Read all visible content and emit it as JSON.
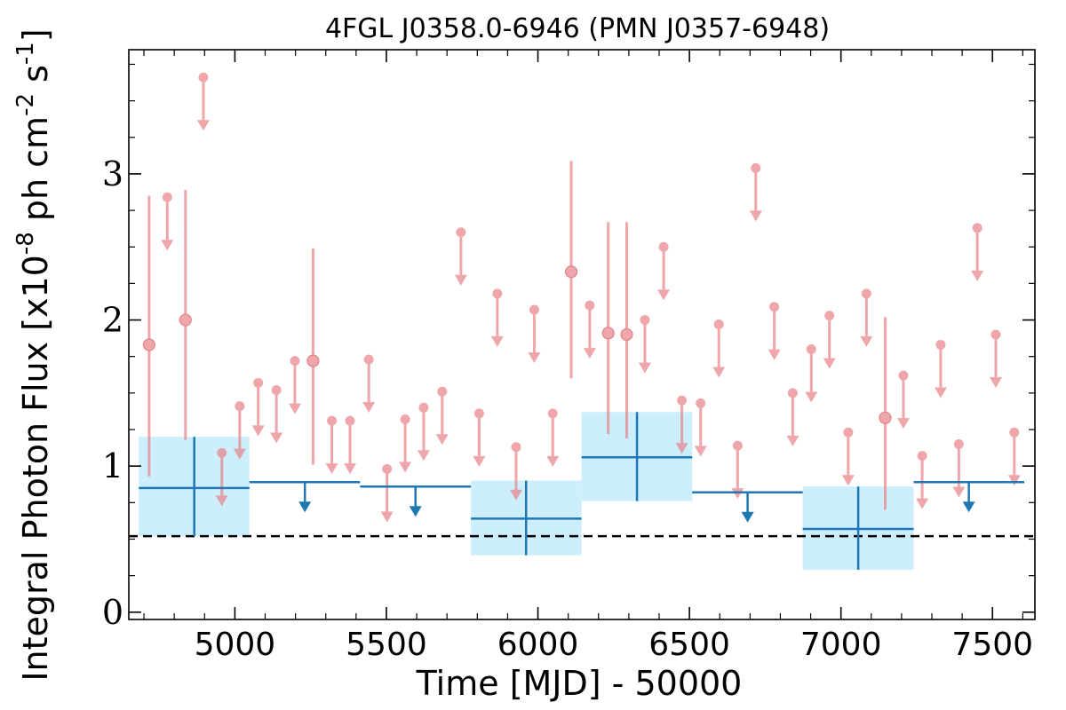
{
  "chart_data": {
    "type": "scatter",
    "title": "4FGL J0358.0-6946 (PMN J0357-6948)",
    "xlabel": "Time [MJD] - 50000",
    "ylabel": "Integral Photon Flux [x10",
    "ylabel_exp": "-8",
    "ylabel_mid": " ph cm",
    "ylabel_exp2": "-2",
    "ylabel_mid2": " s",
    "ylabel_exp3": "-1",
    "ylabel_end": "]",
    "xlim": [
      4650,
      7640
    ],
    "ylim": [
      -0.05,
      3.85
    ],
    "x_ticks": [
      5000,
      5500,
      6000,
      6500,
      7000,
      7500
    ],
    "x_tick_labels": [
      "5000",
      "5500",
      "6000",
      "6500",
      "7000",
      "7500"
    ],
    "y_ticks": [
      0,
      1,
      2,
      3
    ],
    "y_tick_labels": [
      "0",
      "1",
      "2",
      "3"
    ],
    "reference_line": 0.52,
    "colors": {
      "yearly": "#1f77b4",
      "yearly_fill": "#cdeefc",
      "monthly": "#e8858a",
      "reference": "#000000"
    },
    "series": [
      {
        "kind": "yearly-bins",
        "points": [
          {
            "x0": 4683,
            "x1": 5048,
            "xc": 4866,
            "y": 0.85,
            "lo": 0.52,
            "hi": 1.2,
            "type": "detection"
          },
          {
            "x0": 5048,
            "x1": 5413,
            "xc": 5231,
            "y": 0.89,
            "type": "ul"
          },
          {
            "x0": 5413,
            "x1": 5779,
            "xc": 5596,
            "y": 0.86,
            "type": "ul"
          },
          {
            "x0": 5779,
            "x1": 6144,
            "xc": 5961,
            "y": 0.64,
            "lo": 0.39,
            "hi": 0.9,
            "type": "detection"
          },
          {
            "x0": 6144,
            "x1": 6509,
            "xc": 6327,
            "y": 1.06,
            "lo": 0.76,
            "hi": 1.37,
            "type": "detection"
          },
          {
            "x0": 6509,
            "x1": 6874,
            "xc": 6692,
            "y": 0.82,
            "type": "ul"
          },
          {
            "x0": 6874,
            "x1": 7240,
            "xc": 7057,
            "y": 0.57,
            "lo": 0.29,
            "hi": 0.86,
            "type": "detection"
          },
          {
            "x0": 7240,
            "x1": 7605,
            "xc": 7422,
            "y": 0.89,
            "type": "ul"
          }
        ]
      },
      {
        "kind": "monthly-bins",
        "points": [
          {
            "x": 4717,
            "y": 1.83,
            "lo": 0.93,
            "hi": 2.85,
            "type": "detection"
          },
          {
            "x": 4777,
            "y": 2.84,
            "type": "ul"
          },
          {
            "x": 4837,
            "y": 2.0,
            "lo": 1.18,
            "hi": 2.89,
            "type": "detection"
          },
          {
            "x": 4896,
            "y": 3.66,
            "type": "ul"
          },
          {
            "x": 4957,
            "y": 1.09,
            "type": "ul"
          },
          {
            "x": 5016,
            "y": 1.41,
            "type": "ul"
          },
          {
            "x": 5077,
            "y": 1.57,
            "type": "ul"
          },
          {
            "x": 5137,
            "y": 1.52,
            "type": "ul"
          },
          {
            "x": 5198,
            "y": 1.72,
            "type": "ul"
          },
          {
            "x": 5258,
            "y": 1.72,
            "lo": 1.01,
            "hi": 2.49,
            "type": "detection"
          },
          {
            "x": 5320,
            "y": 1.31,
            "type": "ul"
          },
          {
            "x": 5380,
            "y": 1.31,
            "type": "ul"
          },
          {
            "x": 5442,
            "y": 1.73,
            "type": "ul"
          },
          {
            "x": 5502,
            "y": 0.98,
            "type": "ul"
          },
          {
            "x": 5562,
            "y": 1.32,
            "type": "ul"
          },
          {
            "x": 5623,
            "y": 1.4,
            "type": "ul"
          },
          {
            "x": 5684,
            "y": 1.51,
            "type": "ul"
          },
          {
            "x": 5746,
            "y": 2.6,
            "type": "ul"
          },
          {
            "x": 5806,
            "y": 1.36,
            "type": "ul"
          },
          {
            "x": 5866,
            "y": 2.18,
            "type": "ul"
          },
          {
            "x": 5928,
            "y": 1.13,
            "type": "ul"
          },
          {
            "x": 5988,
            "y": 2.07,
            "type": "ul"
          },
          {
            "x": 6049,
            "y": 1.36,
            "type": "ul"
          },
          {
            "x": 6110,
            "y": 2.33,
            "lo": 1.6,
            "hi": 3.09,
            "type": "detection"
          },
          {
            "x": 6171,
            "y": 2.1,
            "type": "ul"
          },
          {
            "x": 6232,
            "y": 1.91,
            "lo": 1.22,
            "hi": 2.67,
            "type": "detection"
          },
          {
            "x": 6293,
            "y": 1.9,
            "lo": 1.19,
            "hi": 2.67,
            "type": "detection"
          },
          {
            "x": 6353,
            "y": 2.0,
            "type": "ul"
          },
          {
            "x": 6415,
            "y": 2.5,
            "type": "ul"
          },
          {
            "x": 6475,
            "y": 1.45,
            "type": "ul"
          },
          {
            "x": 6537,
            "y": 1.43,
            "type": "ul"
          },
          {
            "x": 6597,
            "y": 1.97,
            "type": "ul"
          },
          {
            "x": 6659,
            "y": 1.14,
            "type": "ul"
          },
          {
            "x": 6719,
            "y": 3.04,
            "type": "ul"
          },
          {
            "x": 6780,
            "y": 2.09,
            "type": "ul"
          },
          {
            "x": 6841,
            "y": 1.5,
            "type": "ul"
          },
          {
            "x": 6902,
            "y": 1.8,
            "type": "ul"
          },
          {
            "x": 6962,
            "y": 2.03,
            "type": "ul"
          },
          {
            "x": 7024,
            "y": 1.23,
            "type": "ul"
          },
          {
            "x": 7084,
            "y": 2.18,
            "type": "ul"
          },
          {
            "x": 7146,
            "y": 1.33,
            "lo": 0.7,
            "hi": 2.02,
            "type": "detection"
          },
          {
            "x": 7206,
            "y": 1.62,
            "type": "ul"
          },
          {
            "x": 7268,
            "y": 1.07,
            "type": "ul"
          },
          {
            "x": 7329,
            "y": 1.83,
            "type": "ul"
          },
          {
            "x": 7389,
            "y": 1.15,
            "type": "ul"
          },
          {
            "x": 7450,
            "y": 2.63,
            "type": "ul"
          },
          {
            "x": 7511,
            "y": 1.9,
            "type": "ul"
          },
          {
            "x": 7572,
            "y": 1.23,
            "type": "ul"
          }
        ]
      }
    ]
  }
}
